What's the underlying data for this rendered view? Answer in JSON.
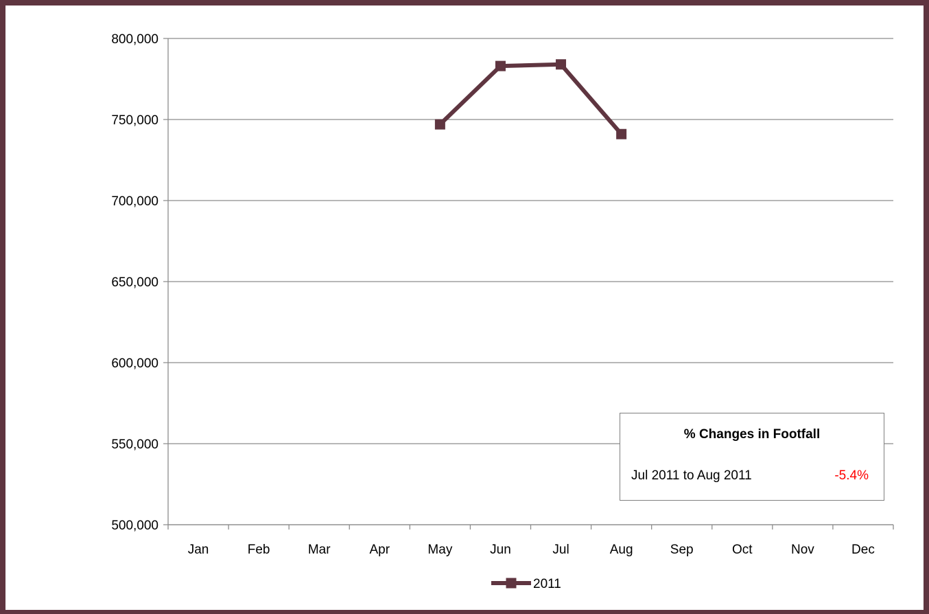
{
  "chart_data": {
    "type": "line",
    "categories": [
      "Jan",
      "Feb",
      "Mar",
      "Apr",
      "May",
      "Jun",
      "Jul",
      "Aug",
      "Sep",
      "Oct",
      "Nov",
      "Dec"
    ],
    "series": [
      {
        "name": "2011",
        "values": [
          null,
          null,
          null,
          null,
          747000,
          783000,
          784000,
          741000,
          null,
          null,
          null,
          null
        ]
      }
    ],
    "ylim": [
      500000,
      800000
    ],
    "y_ticks": [
      500000,
      550000,
      600000,
      650000,
      700000,
      750000,
      800000
    ],
    "y_tick_labels": [
      "500,000",
      "550,000",
      "600,000",
      "650,000",
      "700,000",
      "750,000",
      "800,000"
    ],
    "grid": true,
    "legend_position": "bottom",
    "title": "",
    "xlabel": "",
    "ylabel": ""
  },
  "info_box": {
    "title": "% Changes in Footfall",
    "period": "Jul 2011 to Aug 2011",
    "change": "-5.4%"
  },
  "colors": {
    "series": "#5f3540",
    "frame": "#5f3540",
    "gridline": "#8c8c8c",
    "negative_change": "#ff0000"
  }
}
